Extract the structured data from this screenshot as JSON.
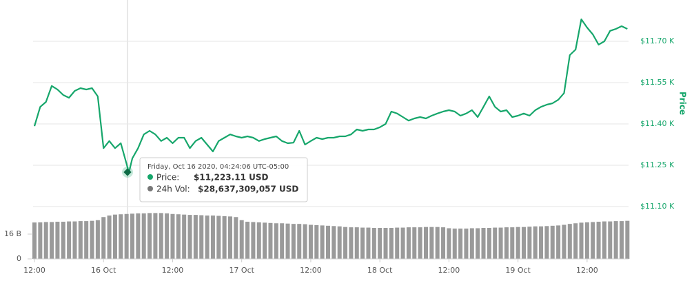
{
  "chart_data": [
    {
      "type": "line",
      "y_axis_label": "Price",
      "color": "#16a66b",
      "x": [
        12,
        13,
        14,
        15,
        16,
        17,
        18,
        19,
        20,
        21,
        22,
        23,
        24,
        25,
        26,
        27,
        28,
        28.4,
        29,
        30,
        31,
        32,
        33,
        34,
        35,
        36,
        37,
        38,
        39,
        40,
        41,
        42,
        43,
        44,
        45,
        46,
        47,
        48,
        49,
        50,
        51,
        52,
        53,
        54,
        55,
        56,
        57,
        58,
        59,
        60,
        61,
        62,
        63,
        64,
        65,
        66,
        67,
        68,
        69,
        70,
        71,
        72,
        73,
        74,
        75,
        76,
        77,
        78,
        79,
        80,
        81,
        82,
        83,
        84,
        85,
        86,
        87,
        88,
        89,
        90,
        91,
        92,
        93,
        94,
        95,
        96,
        97,
        98,
        99,
        100,
        101,
        102,
        103,
        104,
        105,
        106,
        107,
        108,
        109,
        110,
        111,
        112,
        113,
        114,
        115
      ],
      "values": [
        11392,
        11462,
        11480,
        11538,
        11525,
        11505,
        11495,
        11520,
        11530,
        11525,
        11530,
        11500,
        11312,
        11338,
        11312,
        11330,
        11255,
        11223.11,
        11275,
        11312,
        11362,
        11375,
        11362,
        11338,
        11350,
        11330,
        11350,
        11350,
        11312,
        11338,
        11350,
        11325,
        11300,
        11338,
        11350,
        11362,
        11355,
        11350,
        11355,
        11350,
        11338,
        11345,
        11350,
        11355,
        11338,
        11330,
        11332,
        11375,
        11325,
        11338,
        11350,
        11345,
        11350,
        11350,
        11355,
        11355,
        11362,
        11380,
        11375,
        11380,
        11380,
        11388,
        11400,
        11445,
        11438,
        11425,
        11412,
        11420,
        11425,
        11420,
        11430,
        11438,
        11445,
        11450,
        11445,
        11430,
        11438,
        11450,
        11425,
        11462,
        11500,
        11462,
        11445,
        11450,
        11425,
        11430,
        11438,
        11430,
        11450,
        11462,
        11470,
        11475,
        11488,
        11512,
        11650,
        11670,
        11780,
        11750,
        11725,
        11688,
        11700,
        11738,
        11745,
        11755,
        11745
      ],
      "xlim": [
        11.76,
        115.2
      ],
      "ylim": [
        11100,
        11850
      ],
      "yticks": [
        {
          "value": 11100,
          "label": "$11.10 K"
        },
        {
          "value": 11250,
          "label": "$11.25 K"
        },
        {
          "value": 11400,
          "label": "$11.40 K"
        },
        {
          "value": 11550,
          "label": "$11.55 K"
        },
        {
          "value": 11700,
          "label": "$11.70 K"
        }
      ],
      "grid": true,
      "tooltip": {
        "date": "Friday, Oct 16 2020, 04:24:06 UTC-05:00",
        "price_label": "Price:",
        "price": "$11,223.11 USD",
        "volume_label": "24h Vol:",
        "volume": "$28,637,309,057 USD"
      }
    },
    {
      "type": "bar",
      "color": "#9a9a9a",
      "x": [
        12,
        13,
        14,
        15,
        16,
        17,
        18,
        19,
        20,
        21,
        22,
        23,
        24,
        25,
        26,
        27,
        28,
        29,
        30,
        31,
        32,
        33,
        34,
        35,
        36,
        37,
        38,
        39,
        40,
        41,
        42,
        43,
        44,
        45,
        46,
        47,
        48,
        49,
        50,
        51,
        52,
        53,
        54,
        55,
        56,
        57,
        58,
        59,
        60,
        61,
        62,
        63,
        64,
        65,
        66,
        67,
        68,
        69,
        70,
        71,
        72,
        73,
        74,
        75,
        76,
        77,
        78,
        79,
        80,
        81,
        82,
        83,
        84,
        85,
        86,
        87,
        88,
        89,
        90,
        91,
        92,
        93,
        94,
        95,
        96,
        97,
        98,
        99,
        100,
        101,
        102,
        103,
        104,
        105,
        106,
        107,
        108,
        109,
        110,
        111,
        112,
        113,
        114,
        115
      ],
      "values": [
        23.5,
        23.6,
        23.8,
        23.8,
        24.0,
        24.0,
        24.2,
        24.2,
        24.4,
        24.4,
        24.6,
        25.0,
        27.0,
        28.0,
        28.6,
        28.8,
        29.0,
        29.2,
        29.4,
        29.4,
        29.6,
        29.6,
        29.6,
        29.4,
        29.0,
        28.8,
        28.6,
        28.4,
        28.4,
        28.2,
        28.0,
        28.0,
        27.8,
        27.6,
        27.4,
        27.0,
        25.0,
        24.0,
        23.8,
        23.6,
        23.4,
        23.2,
        23.0,
        23.0,
        22.8,
        22.6,
        22.6,
        22.4,
        22.0,
        21.8,
        21.6,
        21.4,
        21.2,
        21.0,
        20.6,
        20.4,
        20.4,
        20.2,
        20.2,
        20.0,
        20.0,
        20.0,
        20.0,
        20.2,
        20.2,
        20.4,
        20.4,
        20.4,
        20.6,
        20.6,
        20.6,
        20.4,
        19.8,
        19.6,
        19.6,
        19.6,
        19.8,
        19.8,
        20.0,
        20.0,
        20.2,
        20.2,
        20.4,
        20.4,
        20.6,
        20.6,
        20.8,
        21.0,
        21.0,
        21.2,
        21.4,
        21.6,
        22.0,
        22.6,
        23.0,
        23.4,
        23.6,
        23.8,
        24.0,
        24.2,
        24.2,
        24.4,
        24.4,
        24.6
      ],
      "xlim": [
        11.76,
        115.2
      ],
      "ylim": [
        0,
        30
      ],
      "yticks": [
        0,
        {
          "value": 16,
          "label": "16 B"
        }
      ],
      "xticks": [
        {
          "value": 12,
          "label": "12:00"
        },
        {
          "value": 24,
          "label": "16 Oct"
        },
        {
          "value": 36,
          "label": "12:00"
        },
        {
          "value": 48,
          "label": "17 Oct"
        },
        {
          "value": 60,
          "label": "12:00"
        },
        {
          "value": 72,
          "label": "18 Oct"
        },
        {
          "value": 84,
          "label": "12:00"
        },
        {
          "value": 96,
          "label": "19 Oct"
        },
        {
          "value": 108,
          "label": "12:00"
        }
      ]
    }
  ]
}
